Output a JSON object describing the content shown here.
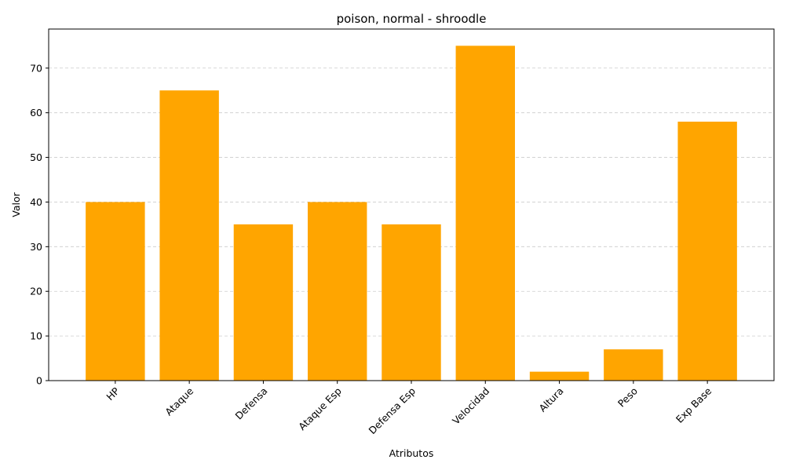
{
  "chart_data": {
    "type": "bar",
    "title": "poison, normal - shroodle",
    "xlabel": "Atributos",
    "ylabel": "Valor",
    "categories": [
      "HP",
      "Ataque",
      "Defensa",
      "Ataque Esp",
      "Defensa Esp",
      "Velocidad",
      "Altura",
      "Peso",
      "Exp Base"
    ],
    "values": [
      40,
      65,
      35,
      40,
      35,
      75,
      2,
      7,
      58
    ],
    "ylim": [
      0,
      78.75
    ],
    "yticks": [
      0,
      10,
      20,
      30,
      40,
      50,
      60,
      70
    ],
    "grid": "y-dashed",
    "bar_color": "#ffa500",
    "legend": "none"
  }
}
